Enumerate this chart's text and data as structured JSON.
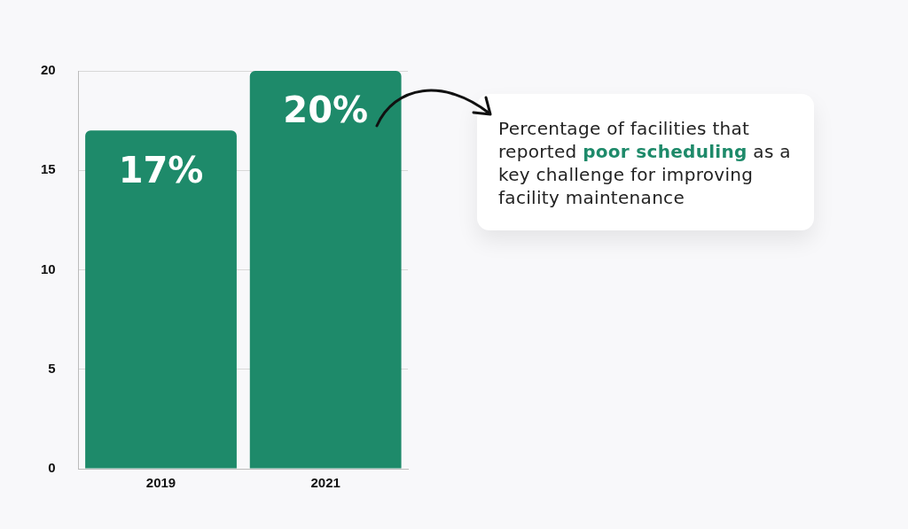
{
  "chart_data": {
    "type": "bar",
    "categories": [
      "2019",
      "2021"
    ],
    "values": [
      17,
      20
    ],
    "color": "#1e8a6a",
    "value_labels": [
      "17%",
      "20%"
    ],
    "ylim": [
      0,
      20
    ],
    "yticks": [
      0,
      5,
      10,
      15,
      20
    ],
    "grid": "y",
    "legend": false,
    "annotations": [
      "Percentage of facilities that reported ",
      "poor scheduling",
      " as a key challenge for improving facility maintenance"
    ]
  }
}
